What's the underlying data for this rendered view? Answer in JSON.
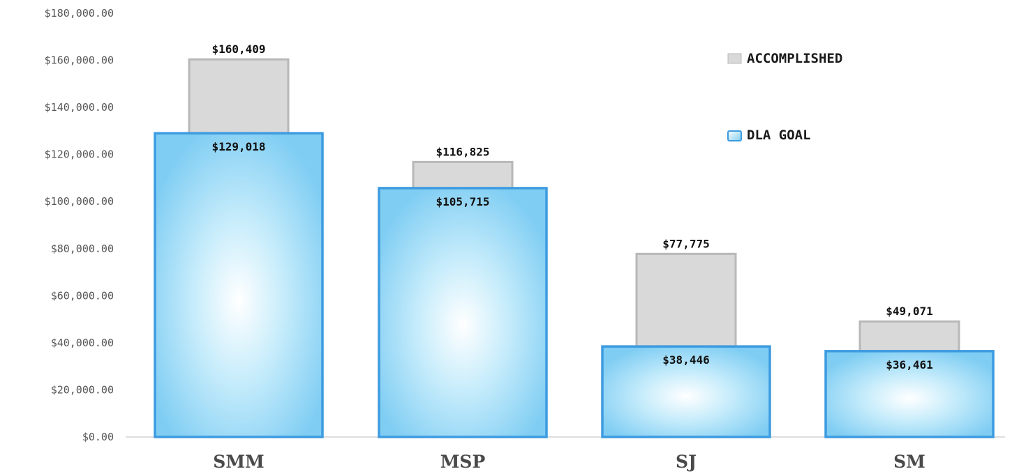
{
  "chart_data": {
    "type": "bar",
    "categories": [
      "SMM",
      "MSP",
      "SJ",
      "SM"
    ],
    "series": [
      {
        "name": "ACCOMPLISHED",
        "values": [
          160409,
          116825,
          77775,
          49071
        ],
        "labels": [
          "$160,409",
          "$116,825",
          "$77,775",
          "$49,071"
        ],
        "color": "#d9d9d9",
        "border": "#b8b8b8"
      },
      {
        "name": "DLA GOAL",
        "values": [
          129018,
          105715,
          38446,
          36461
        ],
        "labels": [
          "$129,018",
          "$105,715",
          "$38,446",
          "$36,461"
        ],
        "color": "#7fcdf3",
        "border": "#3d9be0"
      }
    ],
    "y_ticks": [
      "$0.00",
      "$20,000.00",
      "$40,000.00",
      "$60,000.00",
      "$80,000.00",
      "$100,000.00",
      "$120,000.00",
      "$140,000.00",
      "$160,000.00",
      "$180,000.00"
    ],
    "ylim": [
      0,
      180000
    ],
    "legend_position": "right"
  }
}
